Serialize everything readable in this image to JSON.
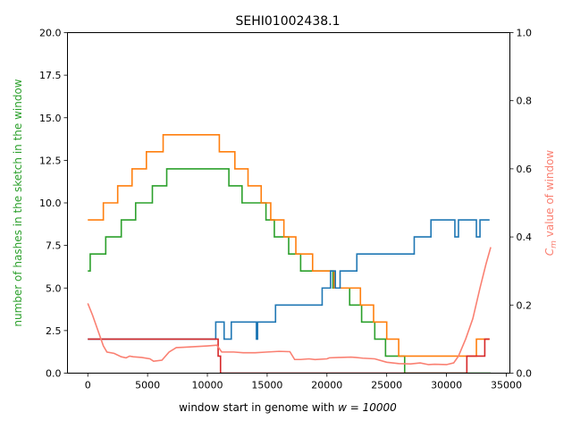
{
  "chart_data": {
    "type": "line",
    "title": "SEHI01002438.1",
    "xlabel": "window start in genome with $w = 10000$",
    "xlabel_prefix": "window start in genome with ",
    "xlabel_math": "w = 10000",
    "ylabel_left": "number of hashes in the sketch in the window",
    "ylabel_right_math": "C",
    "ylabel_right_sub": "m",
    "ylabel_right_rest": " value of window",
    "xlim": [
      -1700,
      35300
    ],
    "ylim_left": [
      0,
      20
    ],
    "ylim_right": [
      0,
      1.0
    ],
    "xticks": [
      0,
      5000,
      10000,
      15000,
      20000,
      25000,
      30000,
      35000
    ],
    "yticks_left": [
      0.0,
      2.5,
      5.0,
      7.5,
      10.0,
      12.5,
      15.0,
      17.5,
      20.0
    ],
    "yticks_right": [
      0.0,
      0.2,
      0.4,
      0.6,
      0.8,
      1.0
    ],
    "grid": false,
    "legend": "none",
    "series": [
      {
        "color": "#2ca02c",
        "axis": "left",
        "step": true,
        "points": [
          [
            0,
            6
          ],
          [
            200,
            7
          ],
          [
            1500,
            8
          ],
          [
            2800,
            9
          ],
          [
            4000,
            10
          ],
          [
            5400,
            11
          ],
          [
            6600,
            12
          ],
          [
            10500,
            12
          ],
          [
            11800,
            11
          ],
          [
            12900,
            10
          ],
          [
            14900,
            9
          ],
          [
            15600,
            8
          ],
          [
            16800,
            7
          ],
          [
            17800,
            6
          ],
          [
            19000,
            6
          ],
          [
            20500,
            5
          ],
          [
            21200,
            5
          ],
          [
            21900,
            4
          ],
          [
            22900,
            3
          ],
          [
            23400,
            3
          ],
          [
            24000,
            2
          ],
          [
            24900,
            1
          ],
          [
            25300,
            1
          ],
          [
            26500,
            0
          ],
          [
            33700,
            0
          ]
        ]
      },
      {
        "color": "#ff7f0e",
        "axis": "left",
        "step": true,
        "points": [
          [
            0,
            9
          ],
          [
            700,
            9
          ],
          [
            1300,
            10
          ],
          [
            2500,
            11
          ],
          [
            3700,
            12
          ],
          [
            4900,
            13
          ],
          [
            6300,
            14
          ],
          [
            10500,
            14
          ],
          [
            11000,
            13
          ],
          [
            12300,
            12
          ],
          [
            13400,
            11
          ],
          [
            14500,
            10
          ],
          [
            15300,
            9
          ],
          [
            16400,
            8
          ],
          [
            17400,
            7
          ],
          [
            18800,
            6
          ],
          [
            20000,
            6
          ],
          [
            20600,
            5
          ],
          [
            22400,
            5
          ],
          [
            22800,
            4
          ],
          [
            23900,
            3
          ],
          [
            25000,
            2
          ],
          [
            26000,
            1
          ],
          [
            30700,
            1
          ],
          [
            31600,
            1
          ],
          [
            32500,
            2
          ],
          [
            33600,
            2
          ]
        ]
      },
      {
        "color": "#1f77b4",
        "axis": "left",
        "step": true,
        "points": [
          [
            0,
            2
          ],
          [
            10600,
            2
          ],
          [
            10700,
            3
          ],
          [
            11400,
            2
          ],
          [
            12000,
            3
          ],
          [
            14000,
            3
          ],
          [
            14100,
            2
          ],
          [
            14200,
            3
          ],
          [
            15700,
            4
          ],
          [
            19600,
            5
          ],
          [
            20300,
            6
          ],
          [
            20700,
            5
          ],
          [
            21100,
            6
          ],
          [
            22500,
            7
          ],
          [
            27300,
            8
          ],
          [
            28700,
            9
          ],
          [
            30700,
            8
          ],
          [
            31000,
            9
          ],
          [
            31600,
            9
          ],
          [
            32500,
            8
          ],
          [
            32800,
            9
          ],
          [
            33600,
            9
          ]
        ]
      },
      {
        "color": "#d62728",
        "axis": "left",
        "step": true,
        "points": [
          [
            0,
            2
          ],
          [
            10700,
            2
          ],
          [
            10900,
            1
          ],
          [
            11100,
            0
          ],
          [
            31600,
            0
          ],
          [
            31700,
            1
          ],
          [
            33000,
            1
          ],
          [
            33200,
            2
          ],
          [
            33600,
            2
          ]
        ]
      },
      {
        "color": "#fa8072",
        "axis": "right",
        "step": false,
        "points": [
          [
            0,
            0.205
          ],
          [
            400,
            0.17
          ],
          [
            800,
            0.13
          ],
          [
            1300,
            0.08
          ],
          [
            1600,
            0.062
          ],
          [
            2200,
            0.058
          ],
          [
            2800,
            0.048
          ],
          [
            3200,
            0.045
          ],
          [
            3500,
            0.05
          ],
          [
            3800,
            0.048
          ],
          [
            4500,
            0.046
          ],
          [
            5200,
            0.042
          ],
          [
            5500,
            0.035
          ],
          [
            6200,
            0.038
          ],
          [
            6800,
            0.062
          ],
          [
            7400,
            0.075
          ],
          [
            8000,
            0.076
          ],
          [
            9000,
            0.078
          ],
          [
            10000,
            0.08
          ],
          [
            10800,
            0.082
          ],
          [
            11200,
            0.062
          ],
          [
            12200,
            0.062
          ],
          [
            13000,
            0.06
          ],
          [
            14000,
            0.06
          ],
          [
            15000,
            0.062
          ],
          [
            16000,
            0.064
          ],
          [
            16900,
            0.063
          ],
          [
            17300,
            0.04
          ],
          [
            17800,
            0.04
          ],
          [
            18500,
            0.042
          ],
          [
            19000,
            0.04
          ],
          [
            20000,
            0.042
          ],
          [
            20200,
            0.045
          ],
          [
            21000,
            0.046
          ],
          [
            22000,
            0.047
          ],
          [
            22400,
            0.046
          ],
          [
            23000,
            0.044
          ],
          [
            24000,
            0.042
          ],
          [
            25000,
            0.032
          ],
          [
            26000,
            0.028
          ],
          [
            27000,
            0.027
          ],
          [
            27800,
            0.03
          ],
          [
            28500,
            0.025
          ],
          [
            29000,
            0.026
          ],
          [
            30000,
            0.025
          ],
          [
            30600,
            0.03
          ],
          [
            31000,
            0.05
          ],
          [
            31600,
            0.1
          ],
          [
            32200,
            0.16
          ],
          [
            32800,
            0.25
          ],
          [
            33300,
            0.32
          ],
          [
            33700,
            0.37
          ]
        ]
      }
    ]
  }
}
